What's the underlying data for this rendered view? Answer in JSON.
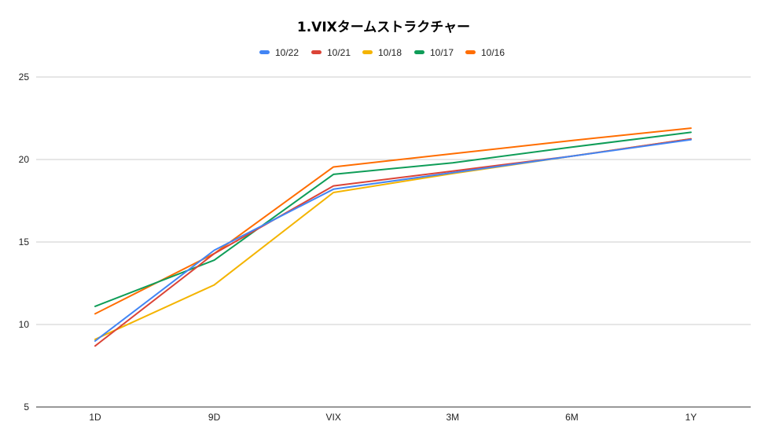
{
  "chart_data": {
    "type": "line",
    "title": "1.VIXタームストラクチャー",
    "xlabel": "",
    "ylabel": "",
    "categories": [
      "1D",
      "9D",
      "VIX",
      "3M",
      "6M",
      "1Y"
    ],
    "ylim": [
      5,
      25
    ],
    "yticks": [
      5,
      10,
      15,
      20,
      25
    ],
    "grid": true,
    "legend_position": "top",
    "series": [
      {
        "name": "10/22",
        "color": "#4285f4",
        "values": [
          9.0,
          14.5,
          18.2,
          19.2,
          20.2,
          21.2
        ]
      },
      {
        "name": "10/21",
        "color": "#db4437",
        "values": [
          8.7,
          14.3,
          18.4,
          19.3,
          20.2,
          21.25
        ]
      },
      {
        "name": "10/18",
        "color": "#f4b400",
        "values": [
          9.1,
          12.4,
          18.0,
          19.15,
          20.2,
          21.25
        ]
      },
      {
        "name": "10/17",
        "color": "#0f9d58",
        "values": [
          11.1,
          13.9,
          19.1,
          19.8,
          20.75,
          21.65
        ]
      },
      {
        "name": "10/16",
        "color": "#ff6d00",
        "values": [
          10.65,
          14.3,
          19.55,
          20.35,
          21.15,
          21.9
        ]
      }
    ]
  }
}
